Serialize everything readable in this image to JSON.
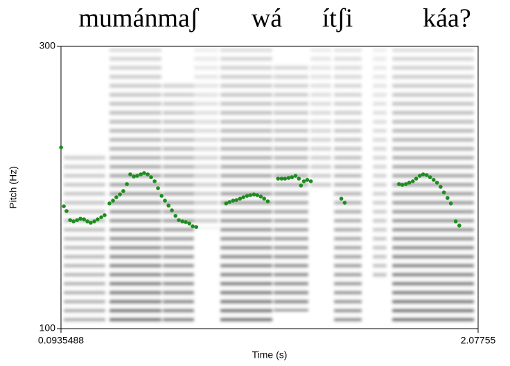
{
  "chart_data": {
    "type": "scatter",
    "annotations": [
      "mumánmaʃ",
      "wá",
      "ítʃi",
      "káa?"
    ],
    "x_label": "Time (s)",
    "y_label": "Pitch (Hz)",
    "xlim": [
      0.0935488,
      2.07755
    ],
    "xticks": [
      0.0935488,
      2.07755
    ],
    "ylim": [
      100,
      300
    ],
    "yticks": [
      100,
      300
    ],
    "series": [
      {
        "color": "#1e8c1e",
        "x": [
          0.094,
          0.107,
          0.12,
          0.137,
          0.153,
          0.17,
          0.186,
          0.203,
          0.219,
          0.235,
          0.252,
          0.268,
          0.285,
          0.301,
          0.324,
          0.341,
          0.357,
          0.374,
          0.39,
          0.407,
          0.423,
          0.44,
          0.456,
          0.473,
          0.489,
          0.506,
          0.522,
          0.539,
          0.555,
          0.572,
          0.588,
          0.605,
          0.621,
          0.638,
          0.654,
          0.671,
          0.687,
          0.704,
          0.72,
          0.737,
          0.879,
          0.895,
          0.912,
          0.928,
          0.945,
          0.961,
          0.978,
          0.994,
          1.011,
          1.027,
          1.044,
          1.06,
          1.077,
          1.126,
          1.143,
          1.159,
          1.176,
          1.192,
          1.209,
          1.225,
          1.235,
          1.249,
          1.265,
          1.282,
          1.427,
          1.443,
          1.701,
          1.717,
          1.734,
          1.75,
          1.767,
          1.783,
          1.8,
          1.816,
          1.833,
          1.849,
          1.866,
          1.882,
          1.899,
          1.915,
          1.932,
          1.948,
          1.971,
          1.988
        ],
        "values": [
          228.4,
          186.7,
          183.3,
          176.9,
          176.0,
          176.9,
          177.9,
          177.4,
          176.0,
          175.0,
          176.0,
          177.4,
          178.9,
          180.4,
          188.7,
          190.7,
          193.1,
          195.1,
          197.5,
          202.4,
          209.3,
          207.8,
          208.3,
          209.3,
          210.3,
          209.3,
          207.3,
          204.4,
          199.5,
          194.1,
          190.7,
          187.2,
          183.8,
          179.9,
          176.9,
          176.0,
          175.5,
          174.5,
          172.5,
          172.0,
          188.7,
          189.7,
          190.7,
          191.1,
          192.1,
          193.1,
          194.1,
          194.6,
          195.1,
          194.6,
          193.6,
          192.1,
          190.2,
          206.3,
          206.3,
          206.3,
          206.8,
          207.3,
          208.3,
          206.3,
          201.4,
          204.4,
          205.4,
          204.4,
          192.1,
          189.2,
          202.4,
          201.9,
          202.4,
          203.4,
          204.4,
          206.3,
          208.3,
          209.3,
          208.8,
          207.3,
          205.4,
          203.4,
          200.5,
          196.5,
          192.6,
          188.7,
          176.0,
          173.0
        ]
      }
    ]
  }
}
